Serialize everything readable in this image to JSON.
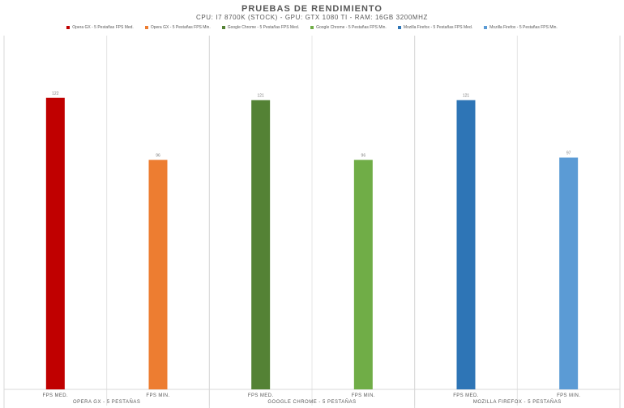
{
  "chart_data": {
    "type": "bar",
    "title": "PRUEBAS DE RENDIMIENTO",
    "subtitle": "CPU: I7 8700K (STOCK) - GPU: GTX 1080 TI - RAM: 16GB 3200MHZ",
    "legend_position": "top",
    "grid": false,
    "ylim": [
      0,
      148
    ],
    "groups": [
      {
        "label": "OPERA GX - 5 PESTAÑAS"
      },
      {
        "label": "GOOGLE CHROME - 5 PESTAÑAS"
      },
      {
        "label": "MOZILLA FIREFOX - 5 PESTAÑAS"
      }
    ],
    "bars": [
      {
        "series": "Opera GX - 5 Pestañas FPS Med.",
        "category": "FPS MED.",
        "group": 0,
        "value": 122,
        "color": "#C00000"
      },
      {
        "series": "Opera GX - 5 Pestañas FPS Min.",
        "category": "FPS MIN.",
        "group": 0,
        "value": 96,
        "color": "#ED7D31"
      },
      {
        "series": "Google Chrome - 5 Pestañas FPS Med.",
        "category": "FPS MED.",
        "group": 1,
        "value": 121,
        "color": "#548235"
      },
      {
        "series": "Google Chrome - 5 Pestañas FPS Min.",
        "category": "FPS MIN.",
        "group": 1,
        "value": 96,
        "color": "#70AD47"
      },
      {
        "series": "Mozilla Firefox - 5 Pestañas FPS Med.",
        "category": "FPS MED.",
        "group": 2,
        "value": 121,
        "color": "#2E75B6"
      },
      {
        "series": "Mozilla Firefox - 5 Pestañas FPS Min.",
        "category": "FPS MIN.",
        "group": 2,
        "value": 97,
        "color": "#5B9BD5"
      }
    ]
  }
}
